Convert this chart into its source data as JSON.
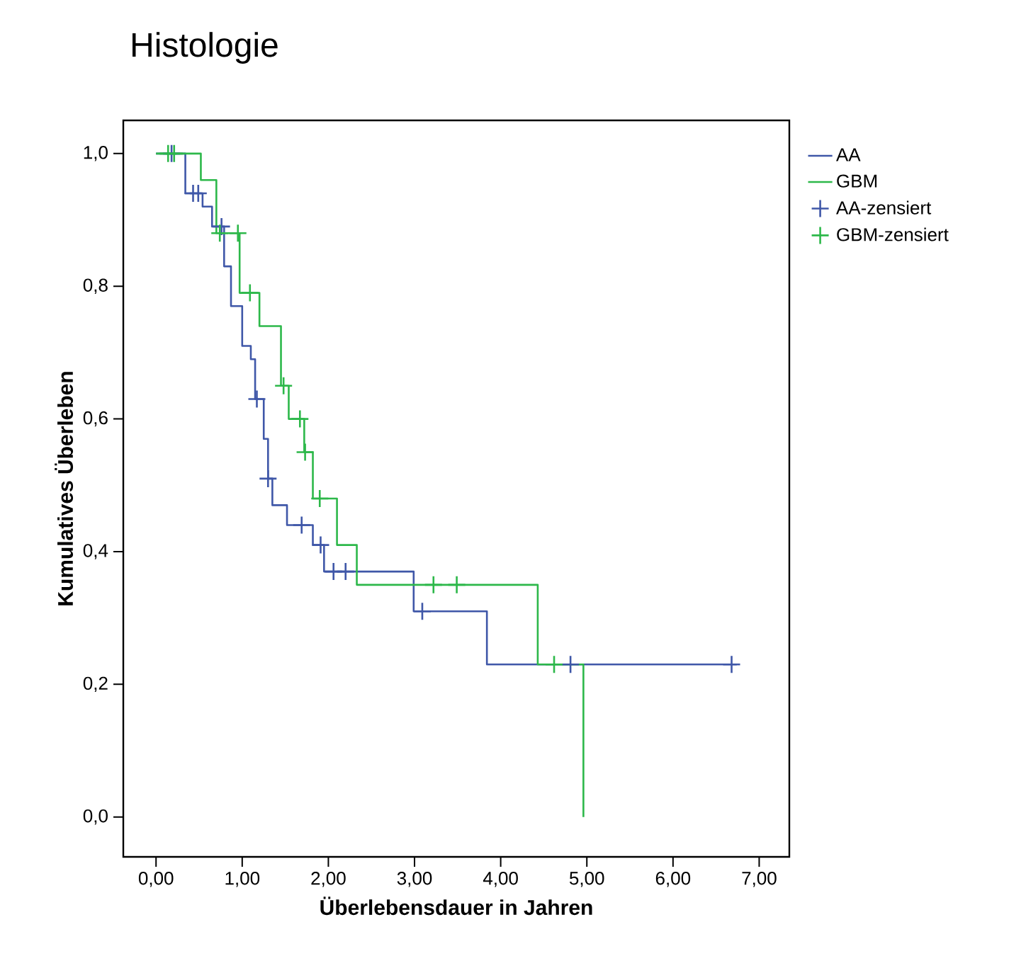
{
  "chart_data": {
    "type": "step",
    "title": "Histologie",
    "xlabel": "Überlebensdauer in Jahren",
    "ylabel": "Kumulatives Überleben",
    "xlim": [
      -0.38,
      7.35
    ],
    "ylim": [
      -0.06,
      1.05
    ],
    "xticks": [
      {
        "value": 0,
        "label": "0,00"
      },
      {
        "value": 1,
        "label": "1,00"
      },
      {
        "value": 2,
        "label": "2,00"
      },
      {
        "value": 3,
        "label": "3,00"
      },
      {
        "value": 4,
        "label": "4,00"
      },
      {
        "value": 5,
        "label": "5,00"
      },
      {
        "value": 6,
        "label": "6,00"
      },
      {
        "value": 7,
        "label": "7,00"
      }
    ],
    "yticks": [
      {
        "value": 0,
        "label": "0,0"
      },
      {
        "value": 0.2,
        "label": "0,2"
      },
      {
        "value": 0.4,
        "label": "0,4"
      },
      {
        "value": 0.6,
        "label": "0,6"
      },
      {
        "value": 0.8,
        "label": "0,8"
      },
      {
        "value": 1,
        "label": "1,0"
      }
    ],
    "legend": "right",
    "grid": false,
    "series": [
      {
        "name": "AA",
        "color": "#3f57a8",
        "x": [
          0,
          0.34,
          0.54,
          0.65,
          0.79,
          0.87,
          1.0,
          1.1,
          1.15,
          1.25,
          1.3,
          1.35,
          1.52,
          1.82,
          1.95,
          2.99,
          3.84,
          6.74
        ],
        "values": [
          1,
          0.94,
          0.92,
          0.89,
          0.83,
          0.77,
          0.71,
          0.69,
          0.63,
          0.57,
          0.51,
          0.47,
          0.44,
          0.41,
          0.37,
          0.31,
          0.23,
          0.23
        ]
      },
      {
        "name": "GBM",
        "color": "#2db84a",
        "x": [
          0,
          0.52,
          0.7,
          0.97,
          1.2,
          1.45,
          1.54,
          1.72,
          1.82,
          2.1,
          2.33,
          4.43,
          4.96,
          4.96
        ],
        "values": [
          1,
          0.96,
          0.88,
          0.79,
          0.74,
          0.65,
          0.6,
          0.55,
          0.48,
          0.41,
          0.35,
          0.23,
          0.23,
          0
        ]
      },
      {
        "name": "AA-zensiert",
        "type": "scatter",
        "marker": "cross",
        "color": "#3f57a8",
        "x": [
          0.18,
          0.43,
          0.49,
          0.76,
          1.17,
          1.3,
          1.69,
          1.91,
          2.06,
          2.2,
          3.09,
          4.81,
          6.68
        ],
        "values": [
          1,
          0.94,
          0.94,
          0.89,
          0.63,
          0.51,
          0.44,
          0.41,
          0.37,
          0.37,
          0.31,
          0.23,
          0.23
        ]
      },
      {
        "name": "GBM-zensiert",
        "type": "scatter",
        "marker": "cross",
        "color": "#2db84a",
        "x": [
          0.14,
          0.21,
          0.74,
          0.95,
          1.09,
          1.48,
          1.67,
          1.73,
          1.9,
          3.22,
          3.49,
          4.62
        ],
        "values": [
          1,
          1,
          0.88,
          0.88,
          0.79,
          0.65,
          0.6,
          0.55,
          0.48,
          0.35,
          0.35,
          0.23
        ]
      }
    ]
  }
}
